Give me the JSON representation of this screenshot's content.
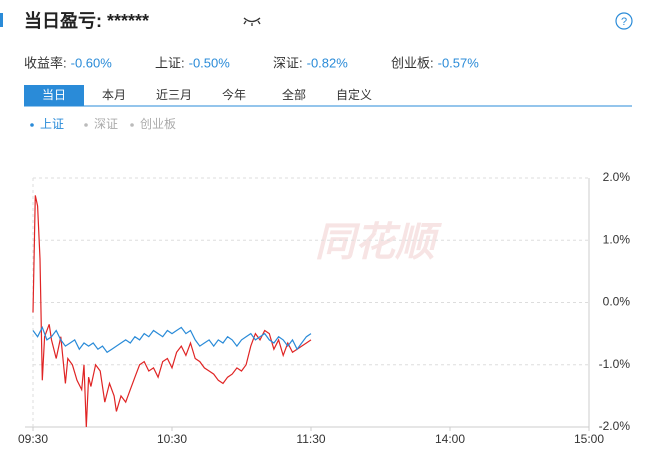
{
  "header": {
    "title": "当日盈亏: ******"
  },
  "stats": [
    {
      "label": "收益率:",
      "value": "-0.60%"
    },
    {
      "label": "上证:",
      "value": "-0.50%"
    },
    {
      "label": "深证:",
      "value": "-0.82%"
    },
    {
      "label": "创业板:",
      "value": "-0.57%"
    }
  ],
  "tabs": [
    "当日",
    "本月",
    "近三月",
    "今年",
    "全部",
    "自定义"
  ],
  "chart_data": {
    "type": "line",
    "watermark": "同花顺",
    "other_indices": [
      "深证",
      "创业板"
    ],
    "xlim": [
      0,
      240
    ],
    "xticks": [
      {
        "value": 0,
        "label": "09:30"
      },
      {
        "value": 60,
        "label": "10:30"
      },
      {
        "value": 120,
        "label": "11:30"
      },
      {
        "value": 180,
        "label": "14:00"
      },
      {
        "value": 240,
        "label": "15:00"
      }
    ],
    "ylim": [
      -2,
      2
    ],
    "yticks": [
      {
        "value": 2,
        "label": "2.0%"
      },
      {
        "value": 1,
        "label": "1.0%"
      },
      {
        "value": 0,
        "label": "0.0%"
      },
      {
        "value": -1,
        "label": "-1.0%"
      },
      {
        "value": -2,
        "label": "-2.0%"
      }
    ],
    "grid": true,
    "series": [
      {
        "color": "#e02424",
        "x": [
          0,
          1,
          2,
          3,
          4,
          5,
          7,
          8,
          10,
          12,
          14,
          15,
          17,
          19,
          21,
          22,
          23,
          24,
          25,
          27,
          29,
          31,
          33,
          35,
          36,
          38,
          40,
          42,
          44,
          46,
          48,
          50,
          52,
          54,
          56,
          58,
          60,
          62,
          64,
          66,
          68,
          70,
          72,
          74,
          76,
          78,
          80,
          82,
          84,
          86,
          88,
          90,
          92,
          94,
          96,
          98,
          100,
          102,
          104,
          106,
          108,
          110,
          112,
          114,
          116,
          118,
          120
        ],
        "values": [
          -0.16,
          1.72,
          1.55,
          0.7,
          -1.25,
          -0.55,
          -0.35,
          -0.6,
          -0.9,
          -0.55,
          -1.3,
          -0.9,
          -1.0,
          -1.25,
          -1.4,
          -1.0,
          -2.0,
          -1.2,
          -1.35,
          -1.0,
          -1.1,
          -1.6,
          -1.3,
          -1.5,
          -1.75,
          -1.5,
          -1.6,
          -1.4,
          -1.2,
          -1.0,
          -0.95,
          -1.1,
          -1.05,
          -1.2,
          -0.95,
          -0.9,
          -1.05,
          -0.8,
          -0.7,
          -0.85,
          -0.65,
          -0.9,
          -0.95,
          -1.05,
          -1.1,
          -1.15,
          -1.25,
          -1.3,
          -1.2,
          -1.15,
          -1.05,
          -1.1,
          -1.0,
          -0.7,
          -0.5,
          -0.6,
          -0.45,
          -0.5,
          -0.75,
          -0.6,
          -0.85,
          -0.65,
          -0.8,
          -0.75,
          -0.7,
          -0.65,
          -0.6
        ]
      },
      {
        "name": "上证",
        "color": "#2a8bd8",
        "x": [
          0,
          2,
          4,
          6,
          8,
          10,
          12,
          14,
          16,
          18,
          20,
          22,
          24,
          26,
          28,
          30,
          32,
          34,
          36,
          38,
          40,
          42,
          44,
          46,
          48,
          50,
          52,
          54,
          56,
          58,
          60,
          62,
          64,
          66,
          68,
          70,
          72,
          74,
          76,
          78,
          80,
          82,
          84,
          86,
          88,
          90,
          92,
          94,
          96,
          98,
          100,
          102,
          104,
          106,
          108,
          110,
          112,
          114,
          116,
          118,
          120
        ],
        "values": [
          -0.45,
          -0.55,
          -0.4,
          -0.6,
          -0.55,
          -0.45,
          -0.6,
          -0.7,
          -0.65,
          -0.6,
          -0.75,
          -0.65,
          -0.7,
          -0.65,
          -0.75,
          -0.7,
          -0.8,
          -0.75,
          -0.7,
          -0.65,
          -0.6,
          -0.65,
          -0.55,
          -0.6,
          -0.5,
          -0.55,
          -0.45,
          -0.5,
          -0.55,
          -0.45,
          -0.5,
          -0.45,
          -0.4,
          -0.5,
          -0.45,
          -0.6,
          -0.7,
          -0.65,
          -0.6,
          -0.7,
          -0.6,
          -0.65,
          -0.55,
          -0.6,
          -0.7,
          -0.6,
          -0.55,
          -0.5,
          -0.6,
          -0.55,
          -0.5,
          -0.6,
          -0.65,
          -0.55,
          -0.6,
          -0.7,
          -0.6,
          -0.75,
          -0.65,
          -0.55,
          -0.5
        ]
      }
    ]
  }
}
